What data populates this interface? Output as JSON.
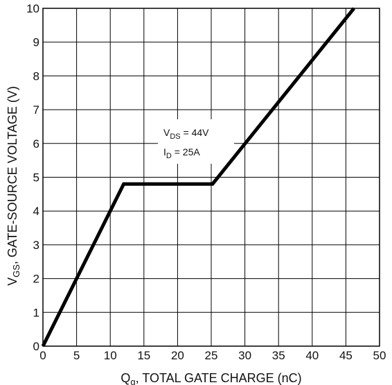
{
  "chart_data": {
    "type": "line",
    "title": "",
    "xlabel": {
      "main": "Q",
      "sub": "g",
      "rest": ", TOTAL GATE CHARGE (nC)"
    },
    "ylabel": {
      "main": "V",
      "sub": "GS",
      "rest": ", GATE-SOURCE VOLTAGE (V)"
    },
    "xlim": [
      0,
      50
    ],
    "ylim": [
      0,
      10
    ],
    "xticks": [
      "0",
      "5",
      "10",
      "15",
      "20",
      "25",
      "30",
      "35",
      "40",
      "45",
      "50"
    ],
    "yticks": [
      "0",
      "1",
      "2",
      "3",
      "4",
      "5",
      "6",
      "7",
      "8",
      "9",
      "10"
    ],
    "grid": true,
    "annotations": [
      {
        "main": "V",
        "sub": "DS",
        "rest": " = 44V"
      },
      {
        "main": "I",
        "sub": "D",
        "rest": " = 25A"
      }
    ],
    "series": [
      {
        "x": [
          0,
          12,
          25.2,
          46.2
        ],
        "y": [
          0,
          4.8,
          4.8,
          10.0
        ]
      }
    ],
    "colors": {
      "line": "#000000",
      "grid": "#000000",
      "background": "#ffffff"
    }
  }
}
